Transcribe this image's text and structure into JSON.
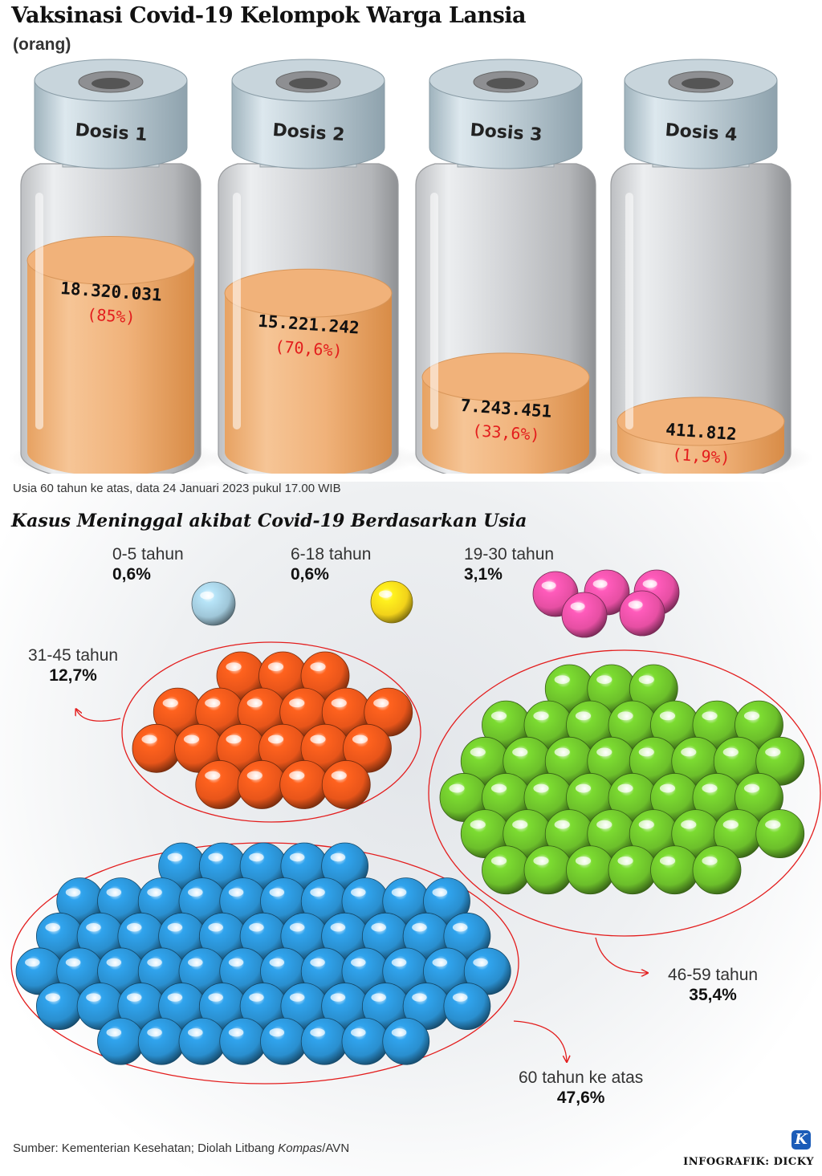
{
  "title": "Vaksinasi Covid-19 Kelompok Warga Lansia",
  "unit": "(orang)",
  "vial_note": "Usia 60 tahun ke atas, data 24 Januari 2023 pukul 17.00 WIB",
  "section2_title": "Kasus Meninggal akibat Covid-19 Berdasarkan Usia",
  "source_prefix": "Sumber: Kementerian Kesehatan; Diolah Litbang ",
  "source_italic": "Kompas",
  "source_suffix": "/AVN",
  "credit": "INFOGRAFIK: DICKY",
  "logo_letter": "K",
  "colors": {
    "liquid": "#f2b47a",
    "liquid_dark": "#e8994f",
    "percent": "#e31d1d",
    "ellipse": "#e31d1d"
  },
  "chart_data": [
    {
      "type": "bar",
      "categories": [
        "Dosis 1",
        "Dosis 2",
        "Dosis 3",
        "Dosis 4"
      ],
      "values": [
        18320031,
        15221242,
        7243451,
        411812
      ],
      "value_labels": [
        "18.320.031",
        "15.221.242",
        "7.243.451",
        "411.812"
      ],
      "percent_values": [
        85,
        70.6,
        33.6,
        1.9
      ],
      "percent_labels": [
        "(85%)",
        "(70,6%)",
        "(33,6%)",
        "(1,9%)"
      ]
    },
    {
      "type": "pie",
      "categories": [
        "0-5 tahun",
        "6-18 tahun",
        "19-30 tahun",
        "31-45 tahun",
        "46-59 tahun",
        "60 tahun ke atas"
      ],
      "values": [
        0.6,
        0.6,
        3.1,
        12.7,
        35.4,
        47.6
      ],
      "labels": [
        "0,6%",
        "0,6%",
        "3,1%",
        "12,7%",
        "35,4%",
        "47,6%"
      ],
      "colors": [
        "#9fc6d8",
        "#f2d21a",
        "#e64fa3",
        "#e8551a",
        "#6cbf2b",
        "#2a8fcf"
      ]
    }
  ]
}
